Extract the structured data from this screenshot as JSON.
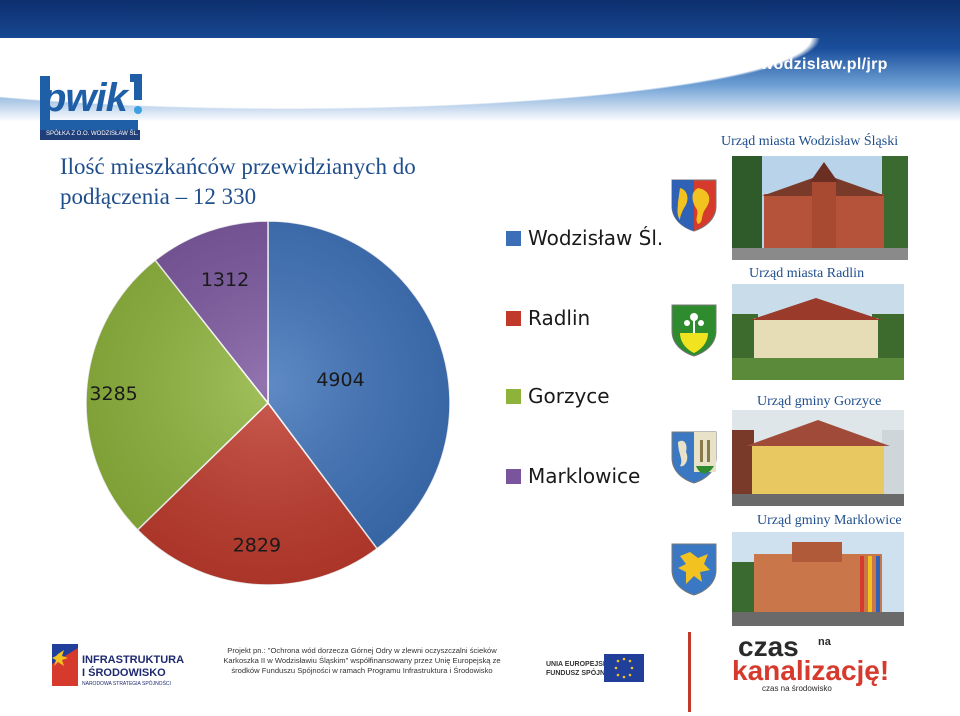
{
  "header": {
    "url": "www.pwik-wodzislaw.pl/jrp",
    "logo_word": "pwik",
    "logo_subtitle": "SPÓŁKA Z O.O. WODZISŁAW ŚL."
  },
  "title": {
    "line1": "Ilość mieszkańców przewidzianych do",
    "line2": "podłączenia – 12 330"
  },
  "chart_data": {
    "type": "pie",
    "categories": [
      "Wodzisław Śl.",
      "Radlin",
      "Gorzyce",
      "Marklowice"
    ],
    "values": [
      4904,
      2829,
      3285,
      1312
    ],
    "colors": [
      "#3b70b8",
      "#c0392b",
      "#8db33a",
      "#7a559e"
    ],
    "data_labels": [
      "4904",
      "2829",
      "3285",
      "1312"
    ],
    "legend_position": "right",
    "start_angle_deg": 0,
    "direction": "clockwise"
  },
  "legend": {
    "items": [
      {
        "label": "Wodzisław Śl.",
        "color": "#3b70b8"
      },
      {
        "label": "Radlin",
        "color": "#c0392b"
      },
      {
        "label": "Gorzyce",
        "color": "#8db33a"
      },
      {
        "label": "Marklowice",
        "color": "#7a559e"
      }
    ]
  },
  "photos": {
    "captions": [
      "Urząd miasta Wodzisław Śląski",
      "Urząd miasta Radlin",
      "Urząd gminy Gorzyce",
      "Urząd gminy Marklowice"
    ]
  },
  "footer": {
    "infra_line1": "INFRASTRUKTURA",
    "infra_line2": "I ŚRODOWISKO",
    "infra_line3": "NARODOWA STRATEGIA SPÓJNOŚCI",
    "project_text": "Projekt pn.: \"Ochrona wód dorzecza Górnej Odry w zlewni oczyszczalni ścieków Karkoszka II w Wodzisławiu Śląskim\" współfinansowany przez Unię Europejską ze środków Funduszu Spójności w ramach Programu Infrastruktura i Środowisko",
    "ue_line1": "UNIA EUROPEJSKA",
    "ue_line2": "FUNDUSZ SPÓJNOŚCI",
    "czas_line1": "czas",
    "czas_na": "na",
    "czas_line2": "kanalizację!",
    "czas_line3": "czas na środowisko"
  }
}
